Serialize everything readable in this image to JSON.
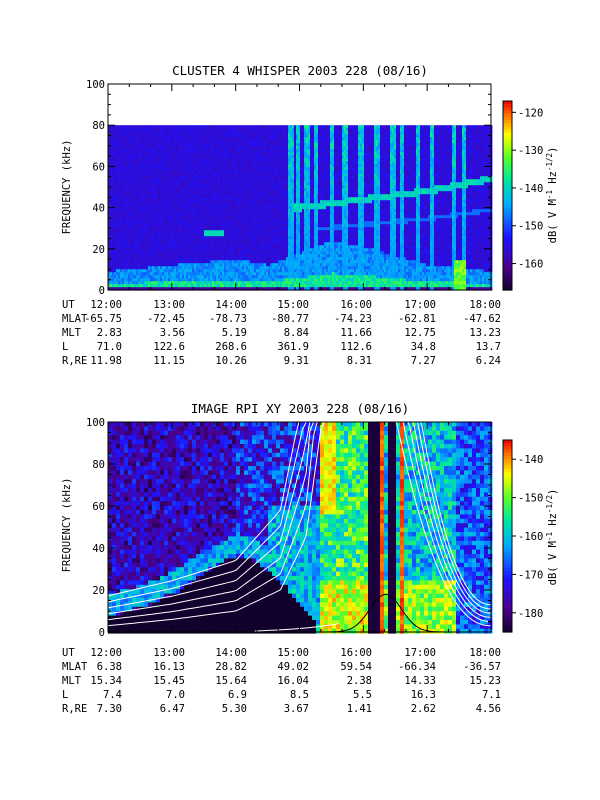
{
  "chart_data": [
    {
      "type": "heatmap",
      "title": "CLUSTER 4 WHISPER 2003 228 (08/16)",
      "ylabel": "FREQUENCY (kHz)",
      "ylim": [
        0,
        100
      ],
      "yticks": [
        "0",
        "20",
        "40",
        "60",
        "80",
        "100"
      ],
      "xlim": [
        "12:00",
        "18:00"
      ],
      "colorbar": {
        "label_parts": [
          "dB( V M",
          "-1",
          " Hz",
          "-1/2",
          ")"
        ],
        "range": [
          -167,
          -117
        ],
        "ticks": [
          "-120",
          "-130",
          "-140",
          "-150",
          "-160"
        ]
      },
      "data_fmax_khz": 80,
      "features": {
        "emission_band_khz": [
          [
            12,
            3
          ],
          [
            13,
            4
          ],
          [
            14,
            5
          ],
          [
            14.5,
            4
          ],
          [
            15,
            6
          ],
          [
            15.5,
            8
          ],
          [
            16,
            7
          ],
          [
            17,
            4
          ],
          [
            18,
            3
          ]
        ],
        "bright_line_khz": [
          [
            15,
            40
          ],
          [
            15.5,
            42
          ],
          [
            16,
            44
          ],
          [
            16.5,
            46
          ],
          [
            17,
            48
          ],
          [
            17.5,
            51
          ],
          [
            18,
            54
          ]
        ],
        "vertical_bursts_hour": [
          14.85,
          14.95,
          15.1,
          15.25,
          15.5,
          15.7,
          15.95,
          16.2,
          16.45,
          16.6,
          16.85,
          17.05,
          17.4,
          17.55
        ]
      },
      "table": {
        "rows": [
          {
            "label": "UT",
            "values": [
              "12:00",
              "13:00",
              "14:00",
              "15:00",
              "16:00",
              "17:00",
              "18:00"
            ]
          },
          {
            "label": "MLAT",
            "values": [
              "-65.75",
              "-72.45",
              "-78.73",
              "-80.77",
              "-74.23",
              "-62.81",
              "-47.62"
            ]
          },
          {
            "label": "MLT",
            "values": [
              "2.83",
              "3.56",
              "5.19",
              "8.84",
              "11.66",
              "12.75",
              "13.23"
            ]
          },
          {
            "label": "L",
            "values": [
              "71.0",
              "122.6",
              "268.6",
              "361.9",
              "112.6",
              "34.8",
              "13.7"
            ]
          },
          {
            "label": "R,RE",
            "values": [
              "11.98",
              "11.15",
              "10.26",
              "9.31",
              "8.31",
              "7.27",
              "6.24"
            ]
          }
        ]
      }
    },
    {
      "type": "heatmap",
      "title": "IMAGE RPI XY 2003 228 (08/16)",
      "ylabel": "FREQUENCY (kHz)",
      "ylim": [
        0,
        100
      ],
      "yticks": [
        "0",
        "20",
        "40",
        "60",
        "80",
        "100"
      ],
      "xlim": [
        "12:00",
        "18:00"
      ],
      "colorbar": {
        "label_parts": [
          "dB( V M",
          "-1",
          " Hz",
          "-1/2",
          ")"
        ],
        "range": [
          -185,
          -135
        ],
        "ticks": [
          "-140",
          "-150",
          "-160",
          "-170",
          "-180"
        ]
      },
      "features": {
        "dark_cutoff_khz": [
          [
            12,
            7
          ],
          [
            12.5,
            11
          ],
          [
            13,
            18
          ],
          [
            13.5,
            28
          ],
          [
            14,
            36
          ],
          [
            14.25,
            34
          ],
          [
            14.75,
            22
          ],
          [
            15,
            12
          ],
          [
            15.2,
            6
          ]
        ],
        "dark_columns_hour": [
          [
            16.05,
            16.2
          ],
          [
            16.38,
            16.48
          ]
        ],
        "red_columns_hour": [
          16.25,
          16.58
        ]
      },
      "table": {
        "rows": [
          {
            "label": "UT",
            "values": [
              "12:00",
              "13:00",
              "14:00",
              "15:00",
              "16:00",
              "17:00",
              "18:00"
            ]
          },
          {
            "label": "MLAT",
            "values": [
              "6.38",
              "16.13",
              "28.82",
              "49.02",
              "59.54",
              "-66.34",
              "-36.57"
            ]
          },
          {
            "label": "MLT",
            "values": [
              "15.34",
              "15.45",
              "15.64",
              "16.04",
              "2.38",
              "14.33",
              "15.23"
            ]
          },
          {
            "label": "L",
            "values": [
              "7.4",
              "7.0",
              "6.9",
              "8.5",
              "5.5",
              "16.3",
              "7.1"
            ]
          },
          {
            "label": "R,RE",
            "values": [
              "7.30",
              "6.47",
              "5.30",
              "3.67",
              "1.41",
              "2.62",
              "4.56"
            ]
          }
        ]
      }
    }
  ]
}
